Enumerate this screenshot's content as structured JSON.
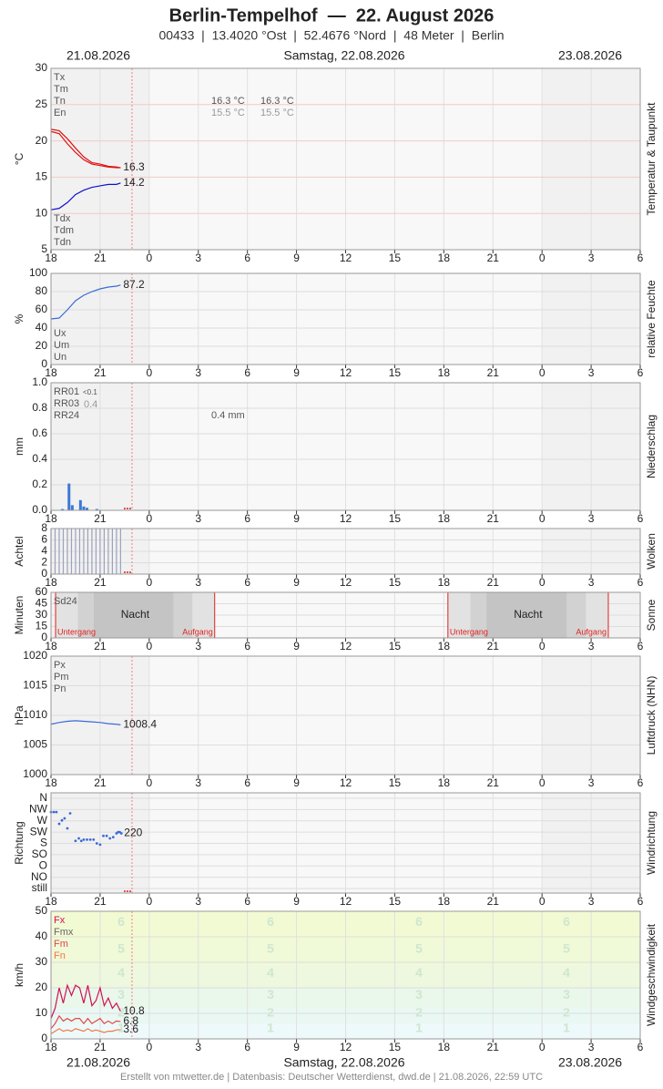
{
  "header": {
    "title": "Berlin-Tempelhof  —  22. August 2026",
    "subtitle": "00433  |  13.4020 °Ost  |  52.4676 °Nord  |  48 Meter  |  Berlin",
    "dates": [
      "21.08.2026",
      "Samstag, 22.08.2026",
      "23.08.2026"
    ]
  },
  "footer": "Erstellt von mtwetter.de | Datenbasis: Deutscher Wetterdienst, dwd.de | 21.08.2026, 22:59 UTC",
  "x_axis": {
    "xlim": [
      18,
      54
    ],
    "xticks": [
      18,
      21,
      {
        "value": 24,
        "label": "0"
      },
      {
        "value": 27,
        "label": "3"
      },
      {
        "value": 30,
        "label": "6"
      },
      {
        "value": 33,
        "label": "9"
      },
      {
        "value": 36,
        "label": "12"
      },
      {
        "value": 39,
        "label": "15"
      },
      {
        "value": 42,
        "label": "18"
      },
      {
        "value": 45,
        "label": "21"
      },
      {
        "value": 48,
        "label": "0"
      },
      {
        "value": 51,
        "label": "3"
      },
      {
        "value": 54,
        "label": "6"
      }
    ]
  },
  "now_line": 22.95,
  "chart_data": [
    {
      "type": "line",
      "ylabel": "°C",
      "side_label": "Temperatur & Taupunkt",
      "ylim": [
        5,
        30
      ],
      "yticks": [
        5,
        10,
        15,
        20,
        25,
        30
      ],
      "grid_color": "#f2caca",
      "labels_top": [
        {
          "text": "Tx"
        },
        {
          "text": "Tm"
        },
        {
          "text": "Tn"
        },
        {
          "text": "En"
        }
      ],
      "labels_bottom": [
        {
          "text": "Tdx"
        },
        {
          "text": "Tdm"
        },
        {
          "text": "Tdn"
        }
      ],
      "annotations": [
        "16.3 °C",
        "16.3 °C",
        "15.5 °C",
        "15.5 °C"
      ],
      "x": [
        18,
        18.5,
        19,
        19.5,
        20,
        20.5,
        21,
        21.5,
        22,
        22.25
      ],
      "series": [
        {
          "color": "#e01010",
          "values": [
            21.6,
            21.4,
            20.3,
            19.0,
            17.8,
            17.0,
            16.8,
            16.5,
            16.4,
            16.3
          ],
          "end_label": true
        },
        {
          "color": "#e01010",
          "values": [
            21.3,
            21.0,
            19.6,
            18.4,
            17.4,
            16.8,
            16.6,
            16.4,
            16.3,
            16.3
          ]
        },
        {
          "color": "#1010d0",
          "values": [
            10.5,
            10.7,
            11.5,
            12.6,
            13.2,
            13.6,
            13.8,
            14.0,
            14.0,
            14.2
          ],
          "end_label": true
        }
      ]
    },
    {
      "type": "line",
      "ylabel": "%",
      "side_label": "relative Feuchte",
      "ylim": [
        0,
        100
      ],
      "yticks": [
        0,
        20,
        40,
        60,
        80,
        100
      ],
      "labels_bottom": [
        {
          "text": "Ux"
        },
        {
          "text": "Um"
        },
        {
          "text": "Un"
        }
      ],
      "x": [
        18,
        18.5,
        19,
        19.5,
        20,
        20.5,
        21,
        21.5,
        22,
        22.25
      ],
      "series": [
        {
          "color": "#3a6ad8",
          "values": [
            50,
            51,
            60,
            70,
            76,
            80,
            83,
            85,
            86,
            87.2
          ],
          "end_label": true
        }
      ]
    },
    {
      "type": "bar",
      "ylabel": "mm",
      "side_label": "Niederschlag",
      "ylim": [
        0,
        1
      ],
      "yticks": [
        {
          "value": 0,
          "label": "0.0"
        },
        {
          "value": 0.2,
          "label": "0.2"
        },
        {
          "value": 0.4,
          "label": "0.4"
        },
        {
          "value": 0.6,
          "label": "0.6"
        },
        {
          "value": 0.8,
          "label": "0.8"
        },
        {
          "value": 1,
          "label": "1.0"
        }
      ],
      "labels_top": [
        {
          "text": "RR01"
        },
        {
          "text": "RR03"
        },
        {
          "text": "RR24"
        }
      ],
      "annotations": [
        "<0.1",
        "0.4",
        "0.4 mm"
      ],
      "x": [
        18.7,
        19.1,
        19.3,
        19.8,
        20.0,
        20.2,
        20.8
      ],
      "values": [
        0.01,
        0.21,
        0.04,
        0.08,
        0.03,
        0.02,
        0.01
      ],
      "color": "#3a78d8",
      "missing": true
    },
    {
      "type": "bar",
      "ylabel": "Achtel",
      "side_label": "Wolken",
      "ylim": [
        0,
        8
      ],
      "yticks": [
        0,
        2,
        4,
        6,
        8
      ],
      "x": [
        18,
        18.25,
        18.5,
        18.75,
        19,
        19.25,
        19.5,
        19.75,
        20,
        20.25,
        20.5,
        20.75,
        21,
        21.25,
        21.5,
        21.75,
        22,
        22.25
      ],
      "values": [
        8,
        8,
        8,
        8,
        8,
        8,
        8,
        8,
        8,
        8,
        8,
        8,
        8,
        8,
        8,
        8,
        8,
        8
      ],
      "color": "#9aa2bc",
      "thin": true,
      "missing": true
    },
    {
      "type": "sun",
      "ylabel": "Minuten",
      "side_label": "Sonne",
      "ylim": [
        0,
        60
      ],
      "yticks": [
        0,
        15,
        30,
        45,
        60
      ],
      "labels_top": [
        {
          "text": "Sd24"
        }
      ],
      "nights": [
        {
          "from": 18.28,
          "to": 28.0,
          "label": "Nacht",
          "sunset": "Untergang",
          "sunrise": "Aufgang"
        },
        {
          "from": 42.25,
          "to": 52.05,
          "label": "Nacht",
          "sunset": "Untergang",
          "sunrise": "Aufgang"
        }
      ]
    },
    {
      "type": "line",
      "ylabel": "hPa",
      "side_label": "Luftdruck (NHN)",
      "ylim": [
        1000,
        1020
      ],
      "yticks": [
        1000,
        1005,
        1010,
        1015,
        1020
      ],
      "labels_top": [
        {
          "text": "Px"
        },
        {
          "text": "Pm"
        },
        {
          "text": "Pn"
        }
      ],
      "x": [
        18,
        18.5,
        19,
        19.5,
        20,
        20.5,
        21,
        21.5,
        22,
        22.25
      ],
      "series": [
        {
          "color": "#3a6ad8",
          "values": [
            1008.5,
            1008.8,
            1009.0,
            1009.1,
            1009.0,
            1008.9,
            1008.8,
            1008.6,
            1008.5,
            1008.4
          ],
          "end_label": true
        }
      ]
    },
    {
      "type": "scatter",
      "ylabel": "Richtung",
      "side_label": "Windrichtung",
      "ylim": [
        0,
        360
      ],
      "yticks": [
        {
          "value": 0,
          "label": "still"
        },
        {
          "value": 45,
          "label": "NO"
        },
        {
          "value": 90,
          "label": "O"
        },
        {
          "value": 135,
          "label": "SO"
        },
        {
          "value": 180,
          "label": "S"
        },
        {
          "value": 225,
          "label": "SW"
        },
        {
          "value": 270,
          "label": "W"
        },
        {
          "value": 315,
          "label": "NW"
        },
        {
          "value": 360,
          "label": "N"
        }
      ],
      "x": [
        18,
        18.17,
        18.33,
        18.5,
        18.67,
        18.83,
        19,
        19.17,
        19.5,
        19.7,
        19.85,
        20,
        20.2,
        20.4,
        20.6,
        20.8,
        21,
        21.2,
        21.4,
        21.6,
        21.8,
        22,
        22.1,
        22.2,
        22.3
      ],
      "series": [
        {
          "color": "#3a6ad8",
          "values": [
            305,
            305,
            305,
            258,
            272,
            280,
            240,
            300,
            190,
            200,
            190,
            195,
            195,
            195,
            195,
            180,
            175,
            210,
            210,
            200,
            205,
            220,
            225,
            225,
            220
          ],
          "end_label": true
        }
      ],
      "missing": true
    },
    {
      "type": "line",
      "ylabel": "km/h",
      "side_label": "Windgeschwindigkeit",
      "ylim": [
        0,
        50
      ],
      "yticks": [
        0,
        10,
        20,
        30,
        40,
        50
      ],
      "labels_top": [
        {
          "text": "Fx",
          "color": "#d0105a"
        },
        {
          "text": "Fmx",
          "color": "#666666"
        },
        {
          "text": "Fm",
          "color": "#e04848"
        },
        {
          "text": "Fn",
          "color": "#f07840"
        }
      ],
      "beaufort": [
        {
          "label": "1",
          "from": 0,
          "to": 6,
          "color": "#eef9fb"
        },
        {
          "label": "2",
          "from": 6,
          "to": 12,
          "color": "#e9f8f3"
        },
        {
          "label": "3",
          "from": 12,
          "to": 20,
          "color": "#e9f8ea"
        },
        {
          "label": "4",
          "from": 20,
          "to": 29,
          "color": "#edf8de"
        },
        {
          "label": "5",
          "from": 29,
          "to": 39,
          "color": "#f0f9d8"
        },
        {
          "label": "6",
          "from": 39,
          "to": 50,
          "color": "#f2fad4"
        }
      ],
      "x": [
        18,
        18.25,
        18.5,
        18.75,
        19,
        19.25,
        19.5,
        19.75,
        20,
        20.25,
        20.5,
        20.75,
        21,
        21.25,
        21.5,
        21.75,
        22,
        22.25
      ],
      "series": [
        {
          "color": "#d0105a",
          "values": [
            8,
            12,
            20,
            14,
            21,
            17,
            21,
            20,
            14,
            21,
            13,
            15,
            20,
            13,
            16,
            12,
            14,
            10.8
          ],
          "end_label": true
        },
        {
          "color": "#e04848",
          "values": [
            4,
            6,
            9,
            7,
            8,
            7,
            8,
            8,
            6,
            8,
            6,
            7,
            8,
            6,
            7,
            6,
            7,
            6.8
          ],
          "end_label": true
        },
        {
          "color": "#f07840",
          "values": [
            2,
            3,
            4,
            3,
            3.5,
            3,
            4,
            3.5,
            3,
            4,
            3,
            3.5,
            3,
            2.5,
            3,
            3,
            3.5,
            3.6
          ],
          "end_label": true
        }
      ]
    }
  ]
}
